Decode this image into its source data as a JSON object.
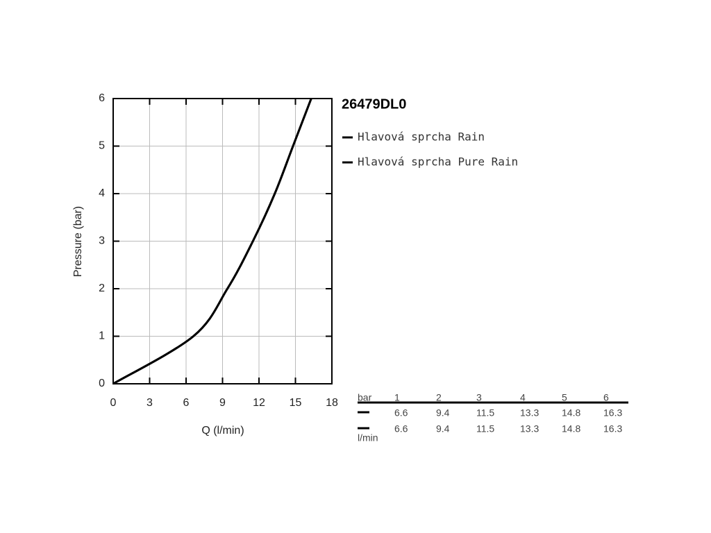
{
  "chart_data": {
    "type": "line",
    "title": "26479DL0",
    "xlabel": "Q (l/min)",
    "ylabel": "Pressure (bar)",
    "xlim": [
      0,
      18
    ],
    "ylim": [
      0,
      6
    ],
    "xticks": [
      0,
      3,
      6,
      9,
      12,
      15,
      18
    ],
    "yticks": [
      0,
      1,
      2,
      3,
      4,
      5,
      6
    ],
    "grid": true,
    "series": [
      {
        "name": "Hlavová sprcha Rain",
        "color": "#000000",
        "x": [
          0,
          6.6,
          9.4,
          11.5,
          13.3,
          14.8,
          16.3
        ],
        "values": [
          0,
          1,
          2,
          3,
          4,
          5,
          6
        ]
      },
      {
        "name": "Hlavová sprcha Pure Rain",
        "color": "#000000",
        "x": [
          0,
          6.6,
          9.4,
          11.5,
          13.3,
          14.8,
          16.3
        ],
        "values": [
          0,
          1,
          2,
          3,
          4,
          5,
          6
        ]
      }
    ],
    "table_header": "bar",
    "table_unit": "l/min"
  }
}
